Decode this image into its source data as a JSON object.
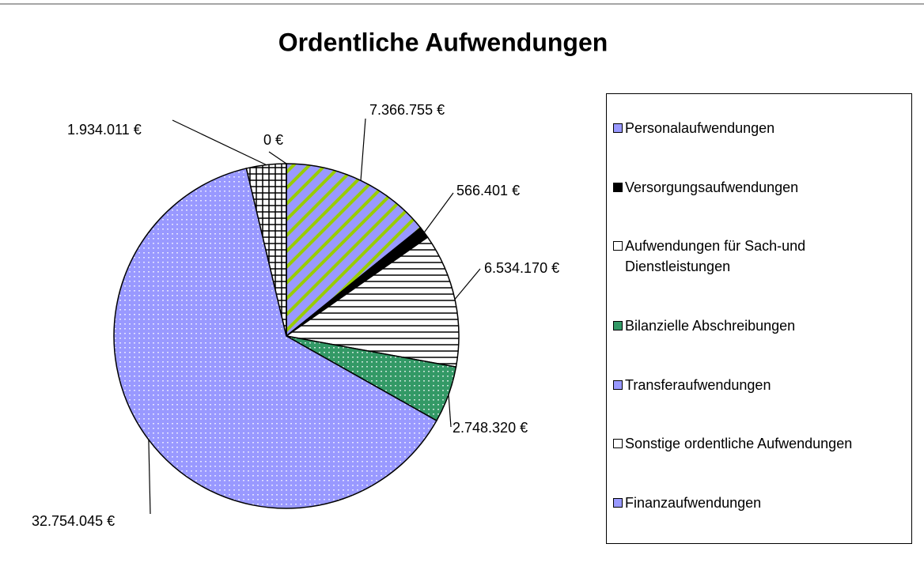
{
  "chart_data": {
    "type": "pie",
    "title": "Ordentliche Aufwendungen",
    "categories": [
      "Personalaufwendungen",
      "Versorgungsaufwendungen",
      "Aufwendungen für Sach-und Dienstleistungen",
      "Bilanzielle Abschreibungen",
      "Transferaufwendungen",
      "Sonstige ordentliche Aufwendungen",
      "Finanzaufwendungen"
    ],
    "values": [
      7366755,
      566401,
      6534170,
      2748320,
      32754045,
      1934011,
      0
    ],
    "value_labels": [
      "7.366.755 €",
      "566.401 €",
      "6.534.170 €",
      "2.748.320 €",
      "32.754.045 €",
      "1.934.011 €",
      "0 €"
    ],
    "colors": [
      "#9999ff",
      "#000000",
      "#ffffff",
      "#339966",
      "#9999ff",
      "#ffffff",
      "#9999ff"
    ],
    "patterns": [
      "diagonal",
      "solid",
      "horizontal",
      "dots",
      "dots",
      "grid",
      "dots"
    ],
    "legend": "right"
  }
}
